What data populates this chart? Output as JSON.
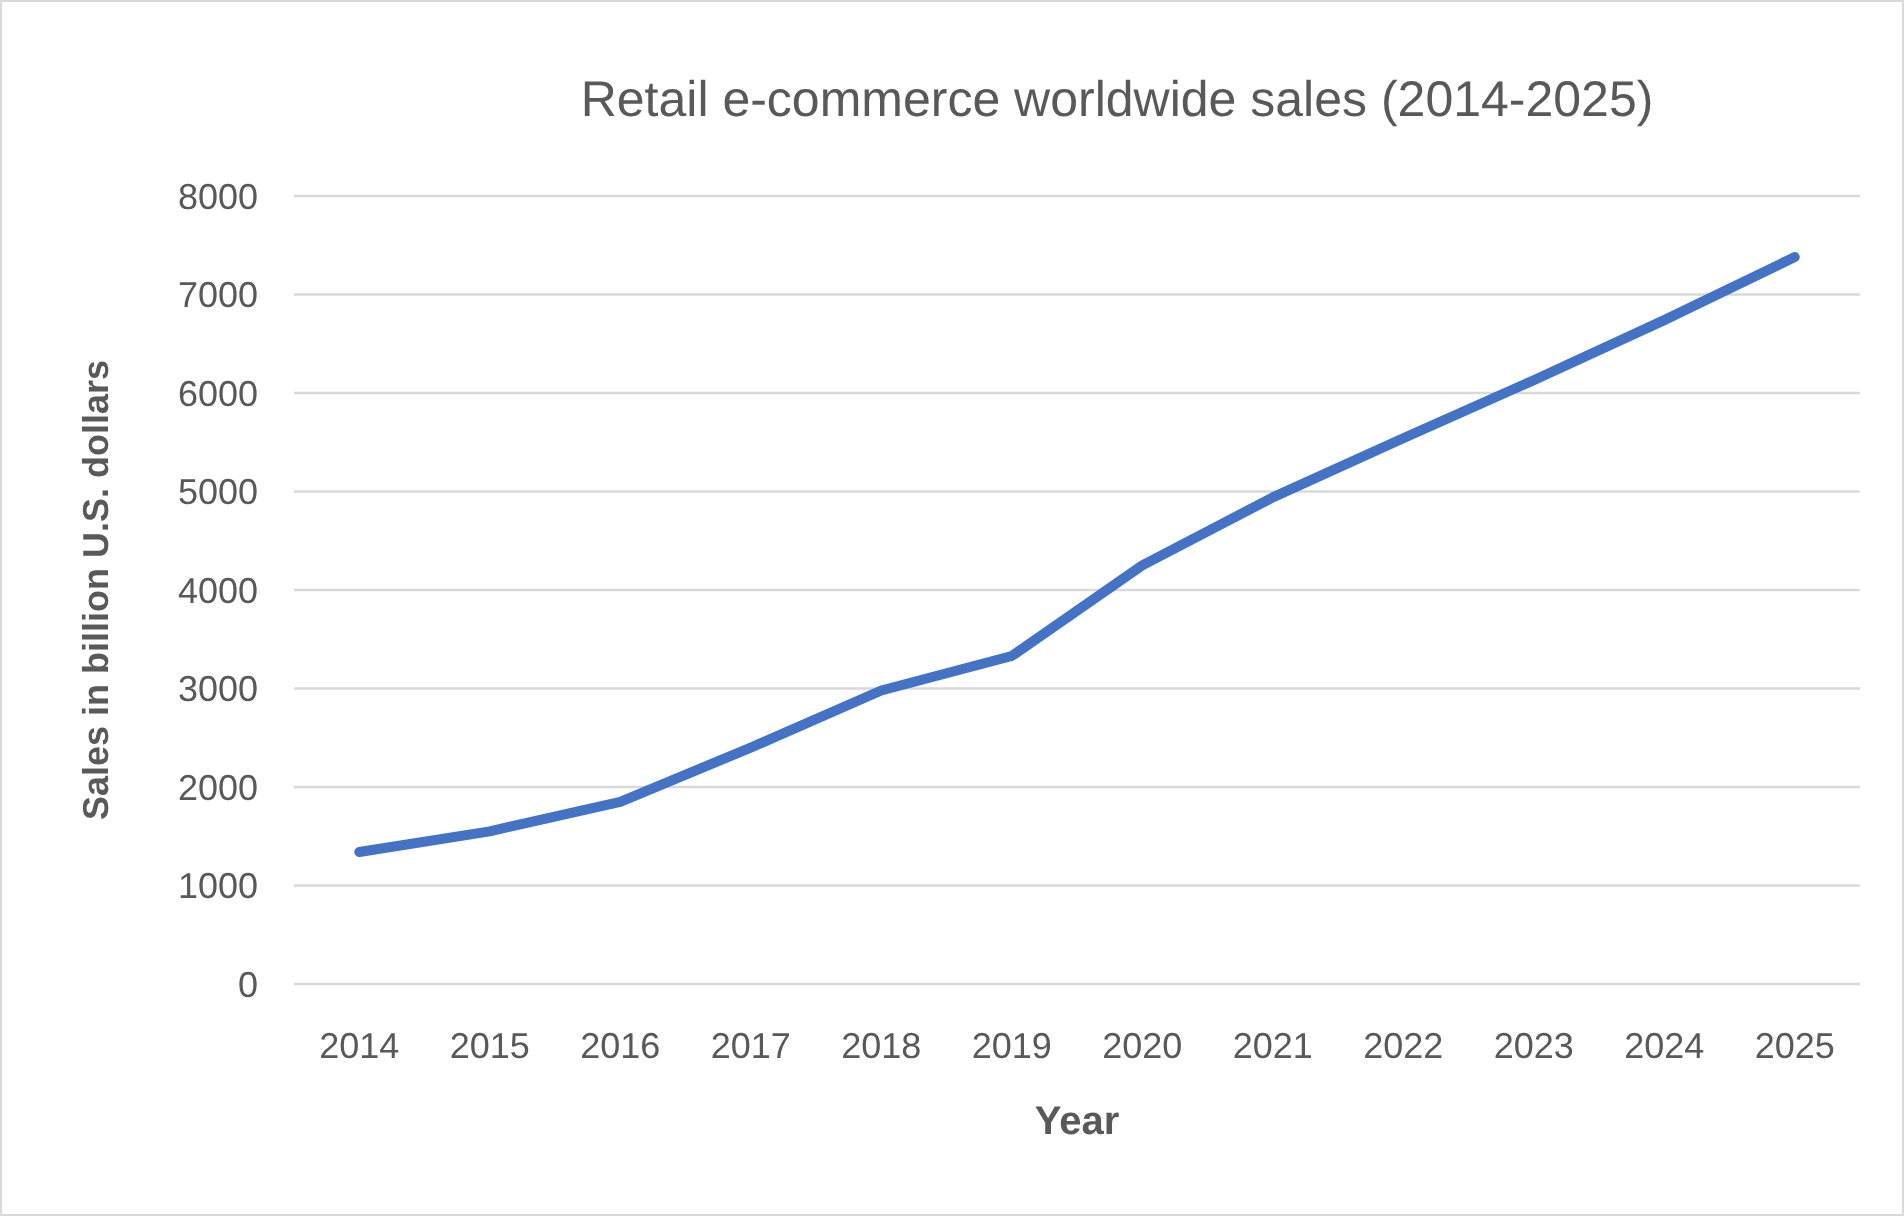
{
  "chart_data": {
    "type": "line",
    "title": "Retail e-commerce worldwide sales (2014-2025)",
    "xlabel": "Year",
    "ylabel": "Sales in billion U.S. dollars",
    "categories": [
      "2014",
      "2015",
      "2016",
      "2017",
      "2018",
      "2019",
      "2020",
      "2021",
      "2022",
      "2023",
      "2024",
      "2025"
    ],
    "series": [
      {
        "color": "#4472c4",
        "values": [
          1340,
          1550,
          1850,
          2400,
          2980,
          3330,
          4250,
          4940,
          5540,
          6130,
          6740,
          7380
        ]
      }
    ],
    "ylim": [
      0,
      8000
    ],
    "yticks": [
      0,
      1000,
      2000,
      3000,
      4000,
      5000,
      6000,
      7000,
      8000
    ],
    "grid": "y",
    "marker": "none",
    "line_style": "solid"
  }
}
